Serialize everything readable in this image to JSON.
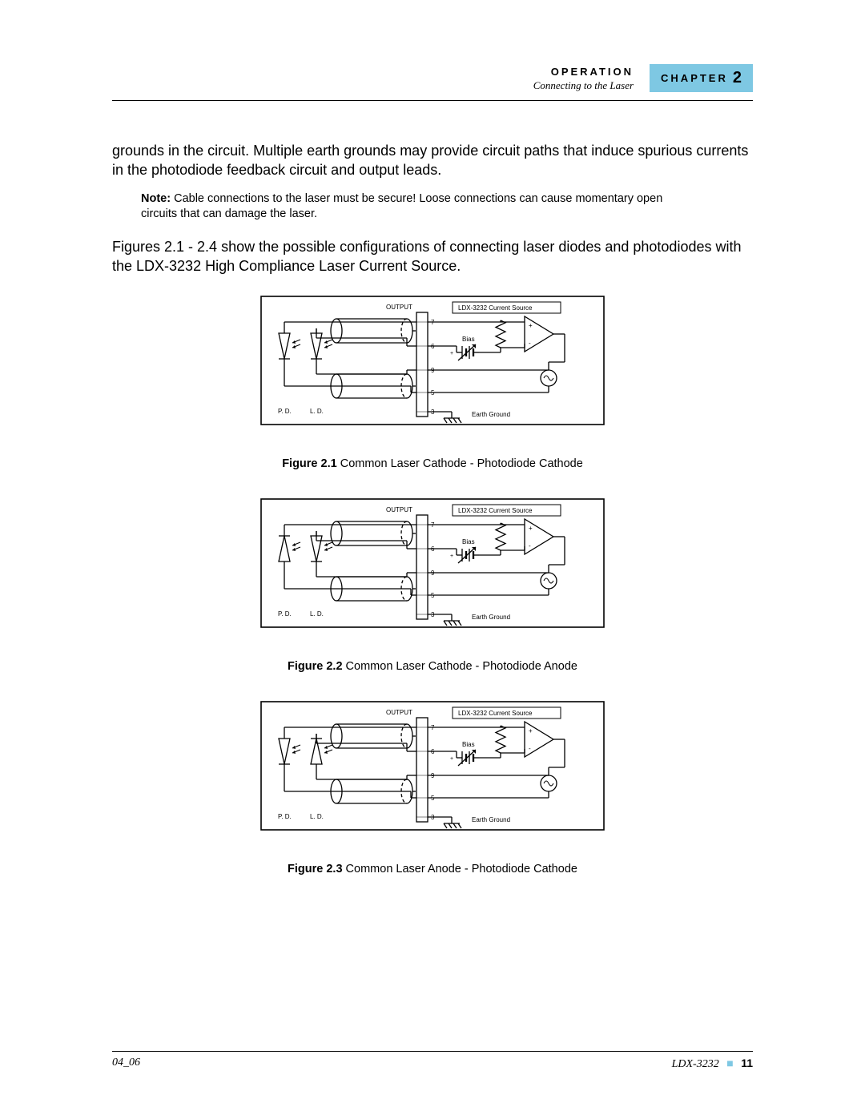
{
  "header": {
    "operation": "OPERATION",
    "subtitle": "Connecting to the Laser",
    "chapter_label": "CHAPTER",
    "chapter_num": "2"
  },
  "para1": "grounds in the circuit. Multiple earth grounds may provide circuit paths that induce spurious currents in the photodiode feedback circuit and output leads.",
  "note": {
    "label": "Note:",
    "text": " Cable connections to the laser must be secure! Loose connections can cause momentary open circuits that can damage the laser."
  },
  "para2": "Figures 2.1 - 2.4 show the possible configurations of connecting laser diodes and photodiodes with the LDX-3232 High Compliance Laser Current Source.",
  "figures": [
    {
      "caption_label": "Figure 2.1",
      "caption_text": "  Common Laser Cathode - Photodiode Cathode",
      "pd_flip": false,
      "ld_flip": false
    },
    {
      "caption_label": "Figure 2.2",
      "caption_text": "  Common Laser Cathode - Photodiode Anode",
      "pd_flip": true,
      "ld_flip": false
    },
    {
      "caption_label": "Figure 2.3",
      "caption_text": "  Common Laser Anode - Photodiode Cathode",
      "pd_flip": false,
      "ld_flip": true
    }
  ],
  "diagram_labels": {
    "output": "OUTPUT",
    "source": "LDX-3232 Current Source",
    "bias": "Bias",
    "earth": "Earth Ground",
    "pd": "P. D.",
    "ld": "L. D.",
    "plus": "+",
    "minus": "-",
    "pins": [
      "7",
      "6",
      "9",
      "5",
      "3"
    ]
  },
  "styling": {
    "border_color": "#000000",
    "stroke_width": 1.3,
    "dash": "4,3",
    "label_fontsize": 8,
    "pin_fontsize": 8,
    "bg": "#ffffff"
  },
  "footer": {
    "left": "04_06",
    "model": "LDX-3232",
    "page": "11"
  }
}
